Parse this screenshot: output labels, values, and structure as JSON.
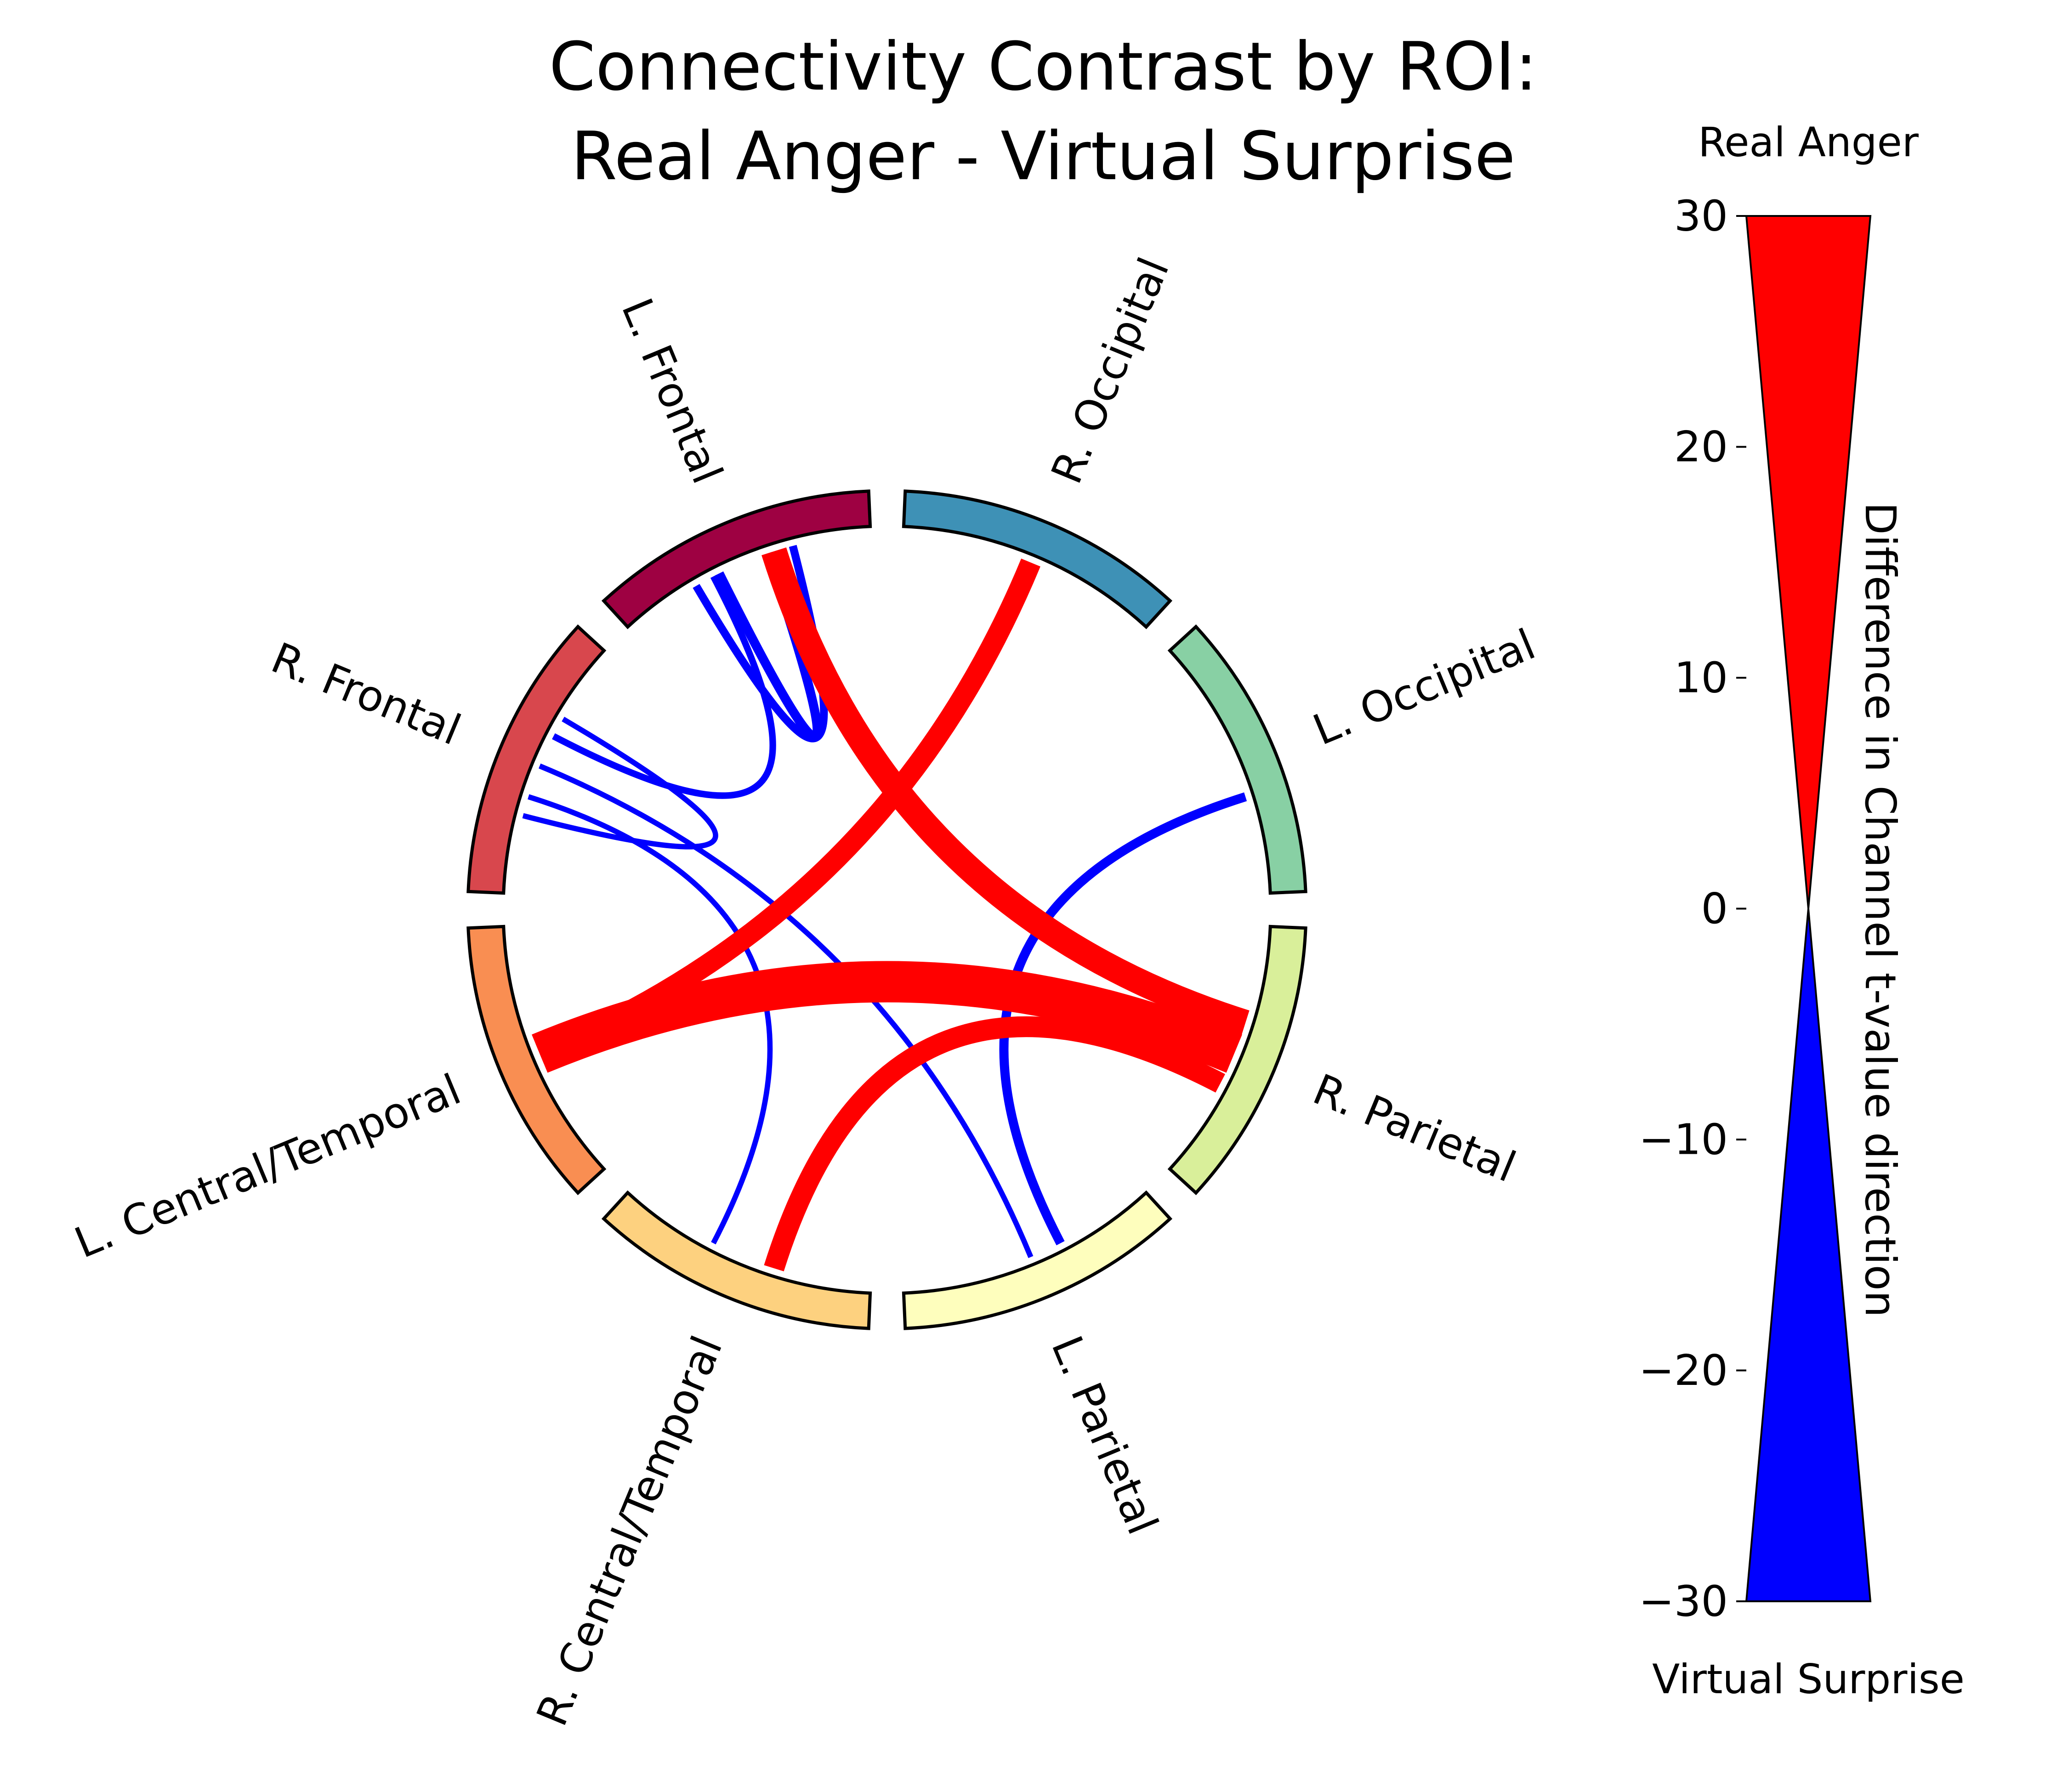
{
  "title_line1": "Connectivity Contrast by ROI:",
  "title_line2": "Real Anger - Virtual Surprise",
  "chart_data": {
    "type": "chord",
    "title": "Connectivity Contrast by ROI: Real Anger - Virtual Surprise",
    "nodes": [
      {
        "name": "L. Frontal",
        "color": "#9e0142"
      },
      {
        "name": "R. Occipital",
        "color": "#3e91b6"
      },
      {
        "name": "L. Occipital",
        "color": "#88d0a4"
      },
      {
        "name": "R. Parietal",
        "color": "#d9ef9a"
      },
      {
        "name": "L. Parietal",
        "color": "#fefebd"
      },
      {
        "name": "R. Central/Temporal",
        "color": "#fdd17f"
      },
      {
        "name": "L. Central/Temporal",
        "color": "#f98e52"
      },
      {
        "name": "R. Frontal",
        "color": "#d8474d"
      }
    ],
    "connections": [
      {
        "from": "L. Central/Temporal",
        "to": "R. Parietal",
        "value": 30
      },
      {
        "from": "L. Frontal",
        "to": "R. Parietal",
        "value": 18
      },
      {
        "from": "R. Occipital",
        "to": "L. Central/Temporal",
        "value": 14
      },
      {
        "from": "R. Central/Temporal",
        "to": "R. Parietal",
        "value": 14
      },
      {
        "from": "L. Frontal",
        "to": "L. Frontal",
        "value": -5
      },
      {
        "from": "L. Frontal",
        "to": "L. Frontal",
        "value": -4
      },
      {
        "from": "L. Occipital",
        "to": "L. Parietal",
        "value": -5
      },
      {
        "from": "R. Frontal",
        "to": "L. Frontal",
        "value": -3
      },
      {
        "from": "R. Frontal",
        "to": "R. Frontal",
        "value": -2
      },
      {
        "from": "R. Frontal",
        "to": "L. Parietal",
        "value": -2
      },
      {
        "from": "R. Frontal",
        "to": "R. Central/Temporal",
        "value": -2
      }
    ],
    "colorbar": {
      "label": "Difference in Channel t-value direction",
      "min": -30,
      "max": 30,
      "ticks": [
        30,
        20,
        10,
        0,
        -10,
        -20,
        -30
      ],
      "tick_labels": [
        "30",
        "20",
        "10",
        "0",
        "−10",
        "−20",
        "−30"
      ],
      "top_label": "Real Anger",
      "bottom_label": "Virtual Surprise",
      "positive_color": "#ff0000",
      "negative_color": "#0000ff"
    }
  }
}
